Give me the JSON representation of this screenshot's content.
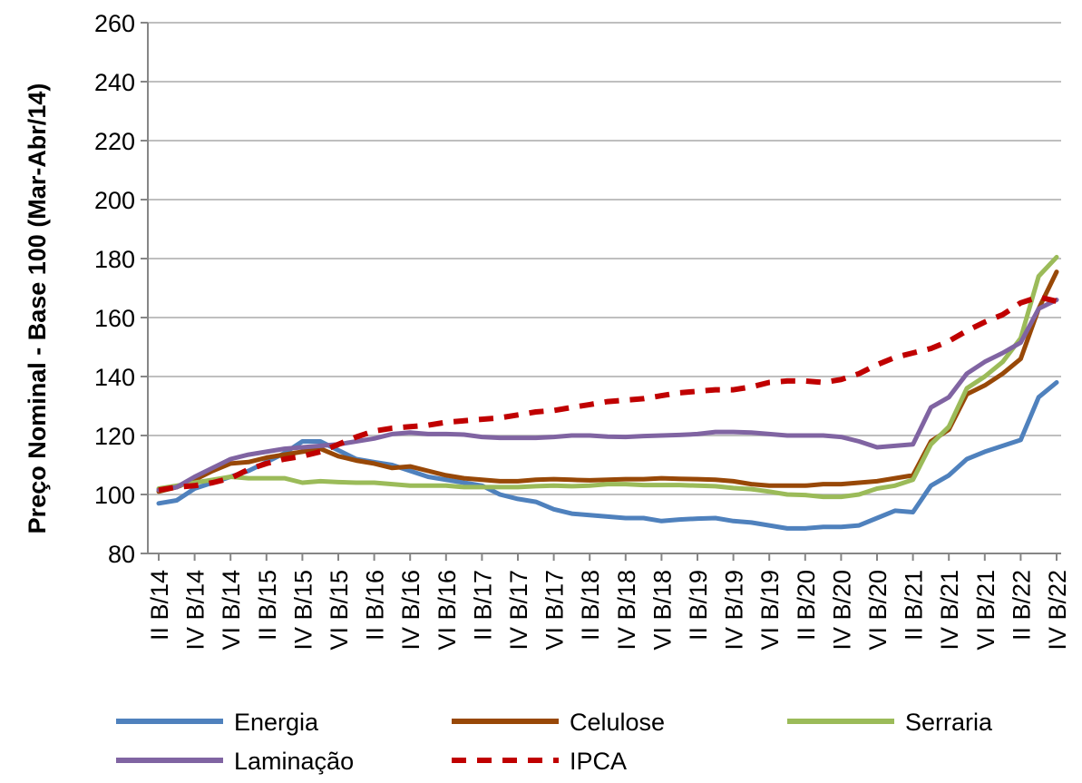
{
  "chart_data": {
    "type": "line",
    "title": "",
    "xlabel": "",
    "ylabel": "Preço Nominal - Base 100 (Mar-Abr/14)",
    "ylim": [
      80,
      260
    ],
    "yticks": [
      80,
      100,
      120,
      140,
      160,
      180,
      200,
      220,
      240,
      260
    ],
    "grid": "horizontal",
    "legend_position": "bottom",
    "categories": [
      "II B/14",
      "III B/14",
      "IV B/14",
      "V B/14",
      "VI B/14",
      "I B/15",
      "II B/15",
      "III B/15",
      "IV B/15",
      "V B/15",
      "VI B/15",
      "I B/16",
      "II B/16",
      "III B/16",
      "IV B/16",
      "V B/16",
      "VI B/16",
      "I B/17",
      "II B/17",
      "III B/17",
      "IV B/17",
      "V B/17",
      "VI B/17",
      "I B/18",
      "II B/18",
      "III B/18",
      "IV B/18",
      "V B/18",
      "VI B/18",
      "I B/19",
      "II B/19",
      "III B/19",
      "IV B/19",
      "V B/19",
      "VI B/19",
      "I B/20",
      "II B/20",
      "III B/20",
      "IV B/20",
      "V B/20",
      "VI B/20",
      "I B/21",
      "II B/21",
      "III B/21",
      "IV B/21",
      "V B/21",
      "VI B/21",
      "I B/22",
      "II B/22",
      "III B/22",
      "IV B/22"
    ],
    "x_tick_labels": [
      "II B/14",
      "IV B/14",
      "VI B/14",
      "II B/15",
      "IV B/15",
      "VI B/15",
      "II B/16",
      "IV B/16",
      "VI B/16",
      "II B/17",
      "IV B/17",
      "VI B/17",
      "II B/18",
      "IV B/18",
      "VI B/18",
      "II B/19",
      "IV B/19",
      "VI B/19",
      "II B/20",
      "IV B/20",
      "VI B/20",
      "II B/21",
      "IV B/21",
      "VI B/21",
      "II B/22",
      "IV B/22"
    ],
    "series": [
      {
        "name": "Energia",
        "color": "#4f81bd",
        "dash": "solid",
        "values": [
          97,
          98,
          102,
          104,
          106,
          108,
          111,
          114,
          118,
          118,
          115,
          112,
          111,
          110,
          108,
          106,
          105,
          104,
          103,
          100,
          98.5,
          97.5,
          95,
          93.5,
          93,
          92.5,
          92,
          92,
          91,
          91.5,
          91.8,
          92,
          91,
          90.5,
          89.5,
          88.5,
          88.5,
          89,
          89,
          89.5,
          92,
          94.5,
          94,
          103,
          106.5,
          112,
          114.5,
          116.5,
          118.5,
          133,
          138
        ]
      },
      {
        "name": "Celulose",
        "color": "#984807",
        "dash": "solid",
        "values": [
          101,
          102.5,
          105,
          108,
          110.5,
          111,
          112.5,
          113.5,
          114.5,
          115.5,
          113,
          111.5,
          110.5,
          109,
          109.5,
          108,
          106.5,
          105.5,
          105,
          104.5,
          104.5,
          105,
          105.2,
          105,
          104.8,
          105,
          105.2,
          105.2,
          105.5,
          105.3,
          105.2,
          105,
          104.5,
          103.5,
          103,
          103,
          103,
          103.5,
          103.5,
          104,
          104.5,
          105.5,
          106.5,
          118,
          122,
          134,
          137,
          141,
          146,
          163,
          175.5
        ]
      },
      {
        "name": "Serraria",
        "color": "#9bbb59",
        "dash": "solid",
        "values": [
          102,
          103,
          104,
          105,
          106,
          105.5,
          105.5,
          105.5,
          104,
          104.5,
          104.2,
          104,
          104,
          103.5,
          103,
          103,
          103,
          102.5,
          102.5,
          102.5,
          102.5,
          102.8,
          103,
          102.8,
          103,
          103.5,
          103.5,
          103.2,
          103.2,
          103.2,
          103,
          102.8,
          102.2,
          101.8,
          101,
          100,
          99.8,
          99.2,
          99.2,
          100,
          102,
          103,
          105,
          117,
          123,
          136,
          140,
          145,
          153,
          174,
          180.5
        ]
      },
      {
        "name": "Laminação",
        "color": "#8064a2",
        "dash": "solid",
        "values": [
          101.5,
          102.5,
          106,
          109,
          112,
          113.5,
          114.5,
          115.5,
          116,
          116.5,
          117,
          118,
          119,
          120.5,
          121,
          120.5,
          120.5,
          120.3,
          119.5,
          119.2,
          119.2,
          119.2,
          119.5,
          120,
          120,
          119.6,
          119.5,
          119.8,
          120,
          120.2,
          120.5,
          121.2,
          121.2,
          121,
          120.5,
          120,
          120,
          120,
          119.5,
          118,
          116,
          116.5,
          117,
          129.5,
          133,
          141,
          145,
          148,
          151.5,
          163,
          166
        ]
      },
      {
        "name": "IPCA",
        "color": "#c00000",
        "dash": "dashed",
        "values": [
          101.5,
          102.5,
          103,
          104,
          105.5,
          108.5,
          110.5,
          112,
          113,
          114.5,
          117,
          119.5,
          121.5,
          122.5,
          123,
          123.5,
          124.5,
          125,
          125.5,
          126,
          127,
          128,
          128.5,
          129.5,
          130.5,
          131.5,
          132,
          132.5,
          133.5,
          134.5,
          135,
          135.5,
          135.5,
          136.5,
          138,
          138.5,
          138.5,
          138,
          139,
          141,
          144,
          146.5,
          148,
          149.5,
          152,
          155.5,
          158.5,
          161,
          165,
          167,
          165.5
        ]
      }
    ]
  }
}
